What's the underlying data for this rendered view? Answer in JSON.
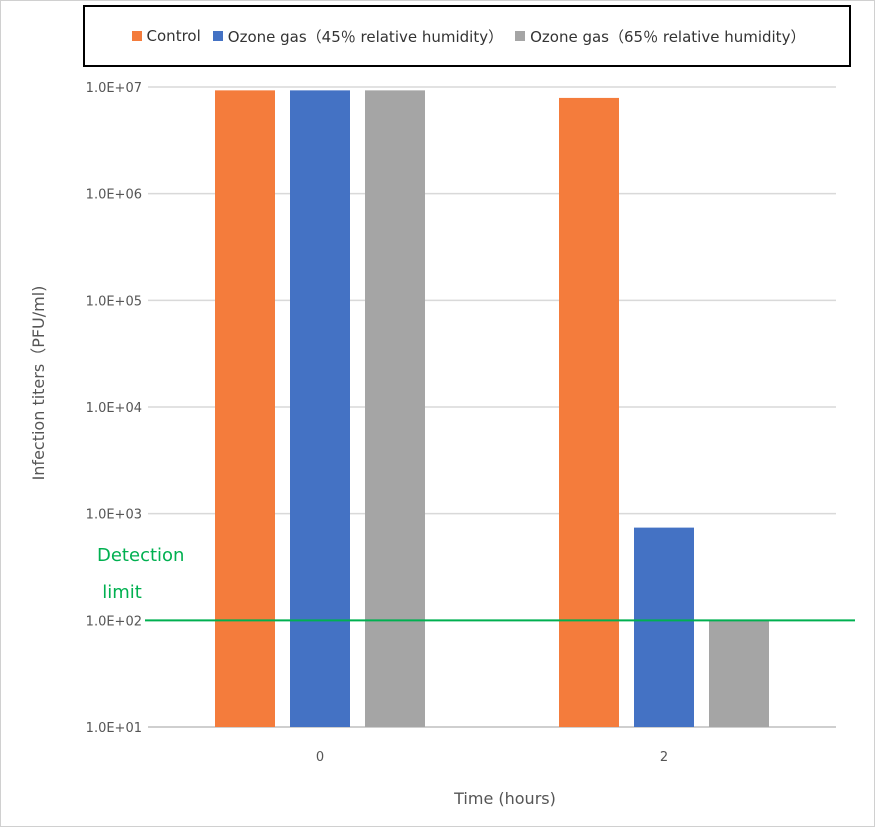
{
  "chart_data": {
    "type": "bar",
    "categories": [
      "0",
      "2"
    ],
    "series": [
      {
        "name": "Control",
        "color": "#f47c3c",
        "values": [
          9300000,
          7900000
        ]
      },
      {
        "name": "Ozone gas（45％ relative humidity）",
        "color": "#4472c4",
        "values": [
          9300000,
          740
        ]
      },
      {
        "name": "Ozone gas（65％ relative humidity）",
        "color": "#a5a5a5",
        "values": [
          9300000,
          100
        ]
      }
    ],
    "xlabel": "Time (hours)",
    "ylabel": "Infection titers（PFU/ml)",
    "yscale": "log",
    "ylim": [
      10,
      10000000
    ],
    "yticks": [
      10,
      100,
      1000,
      10000,
      100000,
      1000000,
      10000000
    ],
    "ytick_labels": [
      "1.0E+01",
      "1.0E+02",
      "1.0E+03",
      "1.0E+04",
      "1.0E+05",
      "1.0E+06",
      "1.0E+07"
    ],
    "grid": true,
    "legend_position": "top",
    "reference_line": {
      "value": 100,
      "label_lines": [
        "Detection",
        "limit"
      ],
      "color": "#00b050"
    }
  }
}
